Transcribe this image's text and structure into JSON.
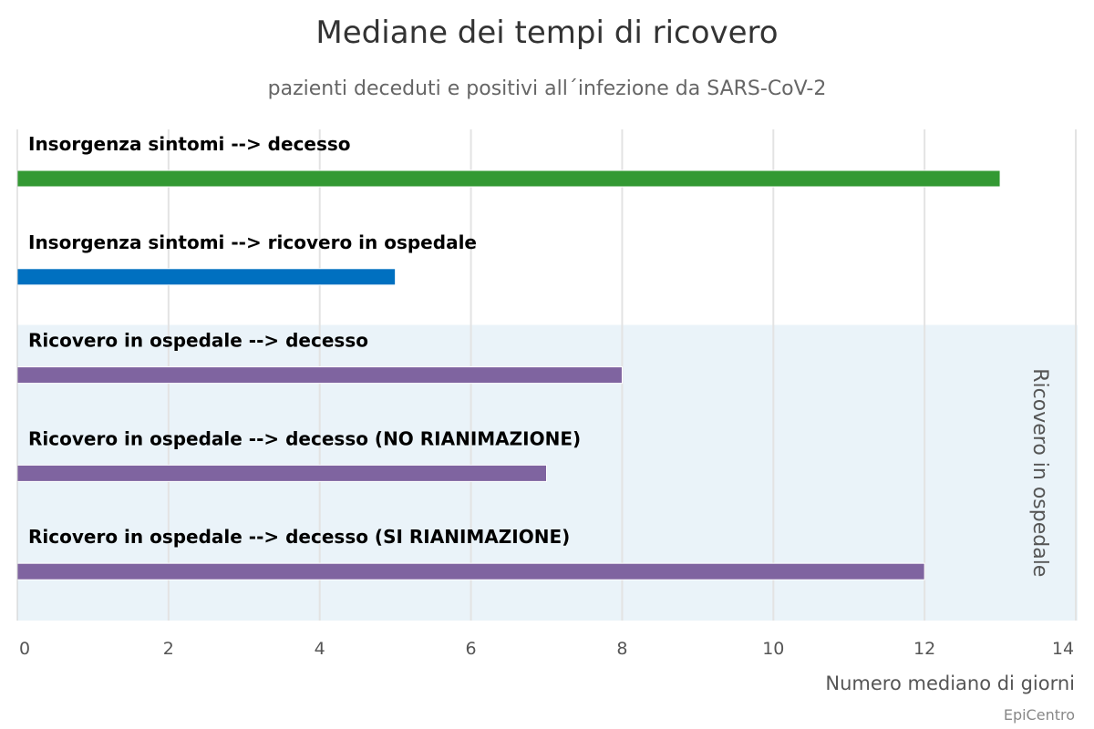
{
  "chart_data": {
    "type": "bar",
    "orientation": "horizontal",
    "title": "Mediane dei tempi di ricovero",
    "subtitle": "pazienti deceduti e positivi all´infezione da SARS-CoV-2",
    "xlabel": "Numero mediano di giorni",
    "xlim": [
      0,
      14
    ],
    "xticks": [
      0,
      2,
      4,
      6,
      8,
      10,
      12,
      14
    ],
    "grid": true,
    "categories": [
      "Insorgenza sintomi --> decesso",
      "Insorgenza sintomi --> ricovero in ospedale",
      "Ricovero in ospedale --> decesso",
      "Ricovero in ospedale --> decesso (NO RIANIMAZIONE)",
      "Ricovero in ospedale --> decesso (SI RIANIMAZIONE)"
    ],
    "values": [
      13,
      5,
      8,
      7,
      12
    ],
    "colors": [
      "#339933",
      "#0070c0",
      "#7f64a0",
      "#7f64a0",
      "#7f64a0"
    ],
    "plot_band": {
      "label": "Ricovero in ospedale",
      "from_category": 2,
      "to_category": 4,
      "color": "#eaf3f9"
    }
  },
  "credits": "EpiCentro"
}
